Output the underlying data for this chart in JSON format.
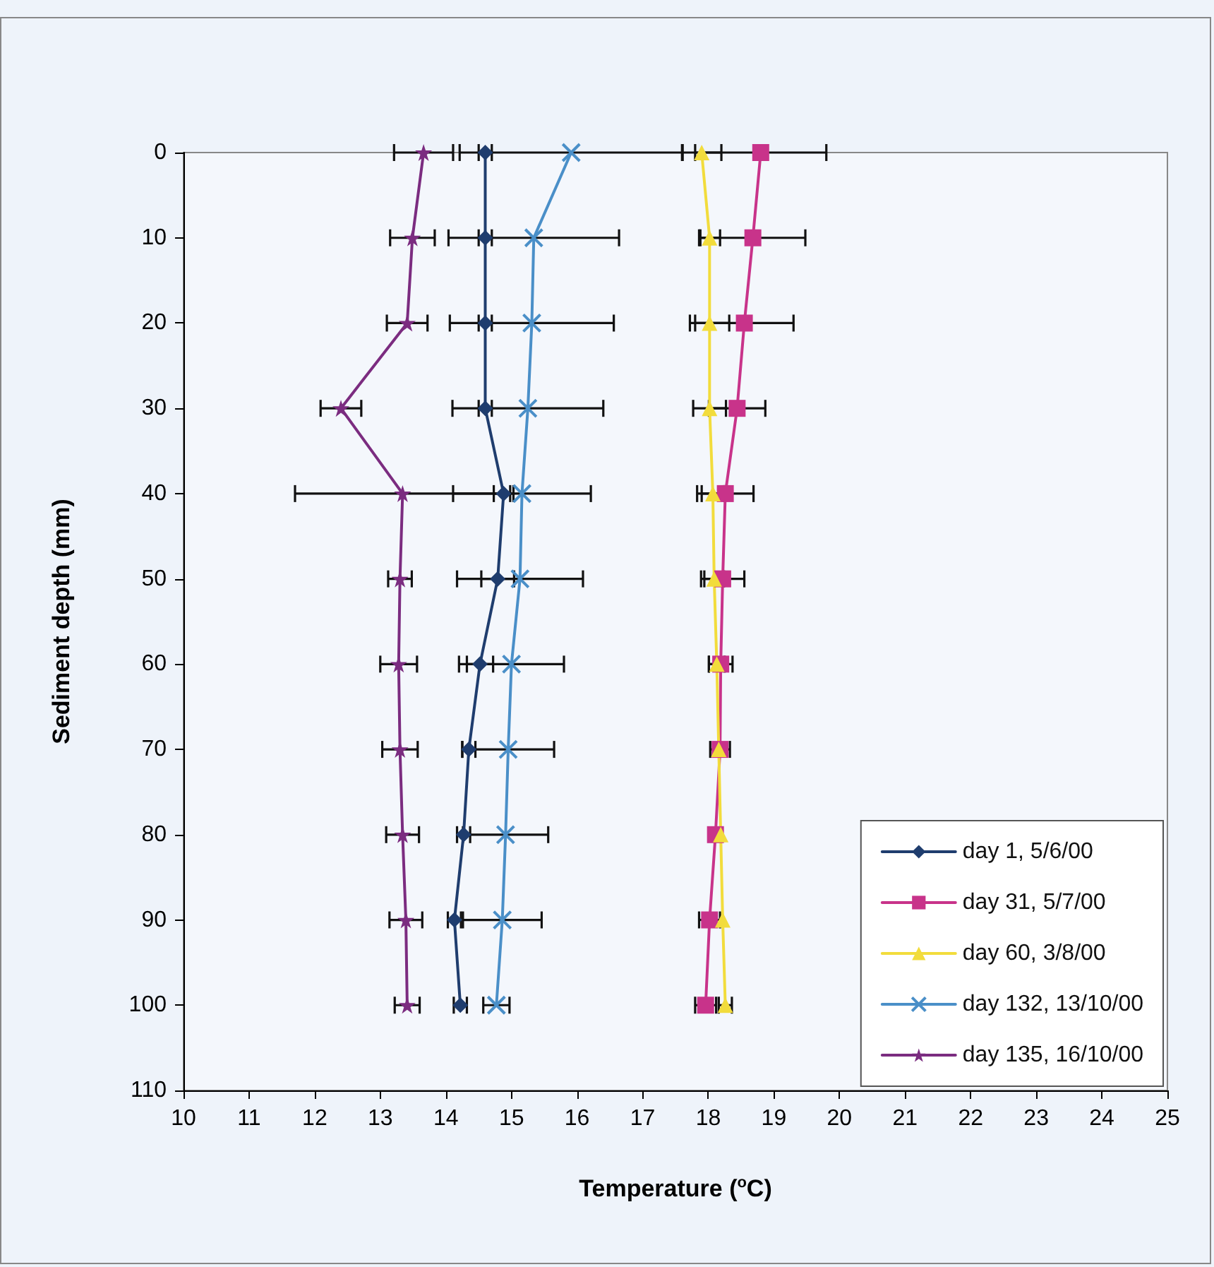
{
  "chart_data": {
    "type": "line",
    "xlabel": "Temperature ($^{o}$C)",
    "ylabel": "Sediment depth (mm)",
    "xlim": [
      10,
      25
    ],
    "xticks": [
      10,
      11,
      12,
      13,
      14,
      15,
      16,
      17,
      18,
      19,
      20,
      21,
      22,
      23,
      24,
      25
    ],
    "ylim": [
      110,
      0
    ],
    "yticks": [
      0,
      10,
      20,
      30,
      40,
      50,
      60,
      70,
      80,
      90,
      100,
      110
    ],
    "grid": false,
    "legend": "bottom right",
    "series": [
      {
        "name": "day 1, 5/6/00",
        "color": "#1f3d6e",
        "marker": "diamond",
        "x": [
          14.6,
          14.6,
          14.6,
          14.6,
          14.88,
          14.79,
          14.52,
          14.35,
          14.27,
          14.13,
          14.22
        ],
        "values": [
          0,
          10,
          20,
          30,
          40,
          50,
          60,
          70,
          80,
          90,
          100
        ],
        "xerrors": [
          0.1,
          0.1,
          0.1,
          0.1,
          0.15,
          0.25,
          0.2,
          0.1,
          0.1,
          0.1,
          0.1
        ]
      },
      {
        "name": "day 31, 5/7/00",
        "color": "#c8338a",
        "marker": "square",
        "x": [
          18.8,
          18.68,
          18.55,
          18.44,
          18.26,
          18.22,
          18.19,
          18.18,
          18.11,
          18.02,
          17.96
        ],
        "values": [
          0,
          10,
          20,
          30,
          40,
          50,
          60,
          70,
          80,
          90,
          100
        ],
        "xerrors": [
          1.0,
          0.8,
          0.75,
          0.43,
          0.43,
          0.33,
          0.18,
          0.15,
          null,
          0.16,
          0.16
        ]
      },
      {
        "name": "day 60, 3/8/00",
        "color": "#f2dc3c",
        "marker": "triangle",
        "x": [
          17.9,
          18.02,
          18.02,
          18.02,
          18.07,
          18.09,
          18.13,
          18.16,
          18.19,
          18.22,
          18.26
        ],
        "values": [
          0,
          10,
          20,
          30,
          40,
          50,
          60,
          70,
          80,
          90,
          100
        ],
        "xerrors": [
          0.3,
          0.16,
          0.3,
          0.25,
          0.17,
          0.15,
          0.12,
          null,
          null,
          null,
          0.1
        ]
      },
      {
        "name": "day 132, 13/10/00",
        "color": "#4a8fc8",
        "marker": "cross",
        "x": [
          15.91,
          15.34,
          15.31,
          15.25,
          15.16,
          15.13,
          15.0,
          14.95,
          14.91,
          14.86,
          14.77
        ],
        "values": [
          0,
          10,
          20,
          30,
          40,
          50,
          60,
          70,
          80,
          90,
          100
        ],
        "xerrors": [
          1.7,
          1.3,
          1.25,
          1.15,
          1.05,
          0.96,
          0.8,
          0.7,
          0.65,
          0.6,
          0.2
        ]
      },
      {
        "name": "day 135, 16/10/00",
        "color": "#7b2c80",
        "marker": "star",
        "x": [
          13.66,
          13.49,
          13.41,
          12.4,
          13.34,
          13.3,
          13.28,
          13.3,
          13.34,
          13.39,
          13.41
        ],
        "values": [
          0,
          10,
          20,
          30,
          40,
          50,
          60,
          70,
          80,
          90,
          100
        ],
        "xerrors": [
          0.45,
          0.34,
          0.31,
          0.31,
          1.64,
          0.18,
          0.28,
          0.27,
          0.25,
          0.25,
          0.19
        ]
      }
    ]
  }
}
